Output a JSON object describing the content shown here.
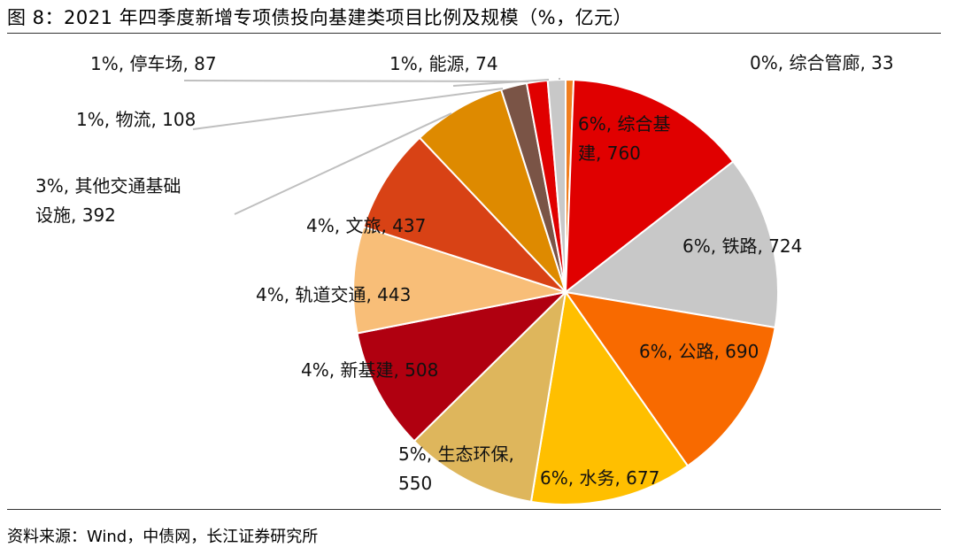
{
  "title": "图 8：2021 年四季度新增专项债投向基建类项目比例及规模（%，亿元）",
  "source": "资料来源：Wind，中债网，长江证券研究所",
  "chart_data": {
    "type": "pie",
    "start_angle_deg": 0,
    "direction": "clockwise",
    "slices": [
      {
        "label": "综合管廊",
        "percent": "0%",
        "value": 33,
        "color": "#f07e1f",
        "text": [
          "0%, 综合管廊, 33"
        ]
      },
      {
        "label": "综合基建",
        "percent": "6%",
        "value": 760,
        "color": "#e00000",
        "text": [
          "6%, 综合基",
          "建, 760"
        ]
      },
      {
        "label": "铁路",
        "percent": "6%",
        "value": 724,
        "color": "#c8c8c8",
        "text": [
          "6%, 铁路, 724"
        ]
      },
      {
        "label": "公路",
        "percent": "6%",
        "value": 690,
        "color": "#f86a00",
        "text": [
          "6%, 公路, 690"
        ]
      },
      {
        "label": "水务",
        "percent": "6%",
        "value": 677,
        "color": "#ffbf00",
        "text": [
          "6%, 水务, 677"
        ]
      },
      {
        "label": "生态环保",
        "percent": "5%",
        "value": 550,
        "color": "#deb65c",
        "text": [
          "5%, 生态环保,",
          "550"
        ]
      },
      {
        "label": "新基建",
        "percent": "4%",
        "value": 508,
        "color": "#b00010",
        "text": [
          "4%, 新基建, 508"
        ]
      },
      {
        "label": "轨道交通",
        "percent": "4%",
        "value": 443,
        "color": "#f8be78",
        "text": [
          "4%, 轨道交通, 443"
        ]
      },
      {
        "label": "文旅",
        "percent": "4%",
        "value": 437,
        "color": "#d84215",
        "text": [
          "4%, 文旅, 437"
        ]
      },
      {
        "label": "其他交通基础设施",
        "percent": "3%",
        "value": 392,
        "color": "#de8a00",
        "text": [
          "3%, 其他交通基础",
          "设施, 392"
        ]
      },
      {
        "label": "物流",
        "percent": "1%",
        "value": 108,
        "color": "#7a5446",
        "text": [
          "1%, 物流, 108"
        ]
      },
      {
        "label": "停车场",
        "percent": "1%",
        "value": 87,
        "color": "#e00000",
        "text": [
          "1%, 停车场, 87"
        ]
      },
      {
        "label": "能源",
        "percent": "1%",
        "value": 74,
        "color": "#c8c8c8",
        "text": [
          "1%, 能源, 74"
        ]
      }
    ]
  }
}
